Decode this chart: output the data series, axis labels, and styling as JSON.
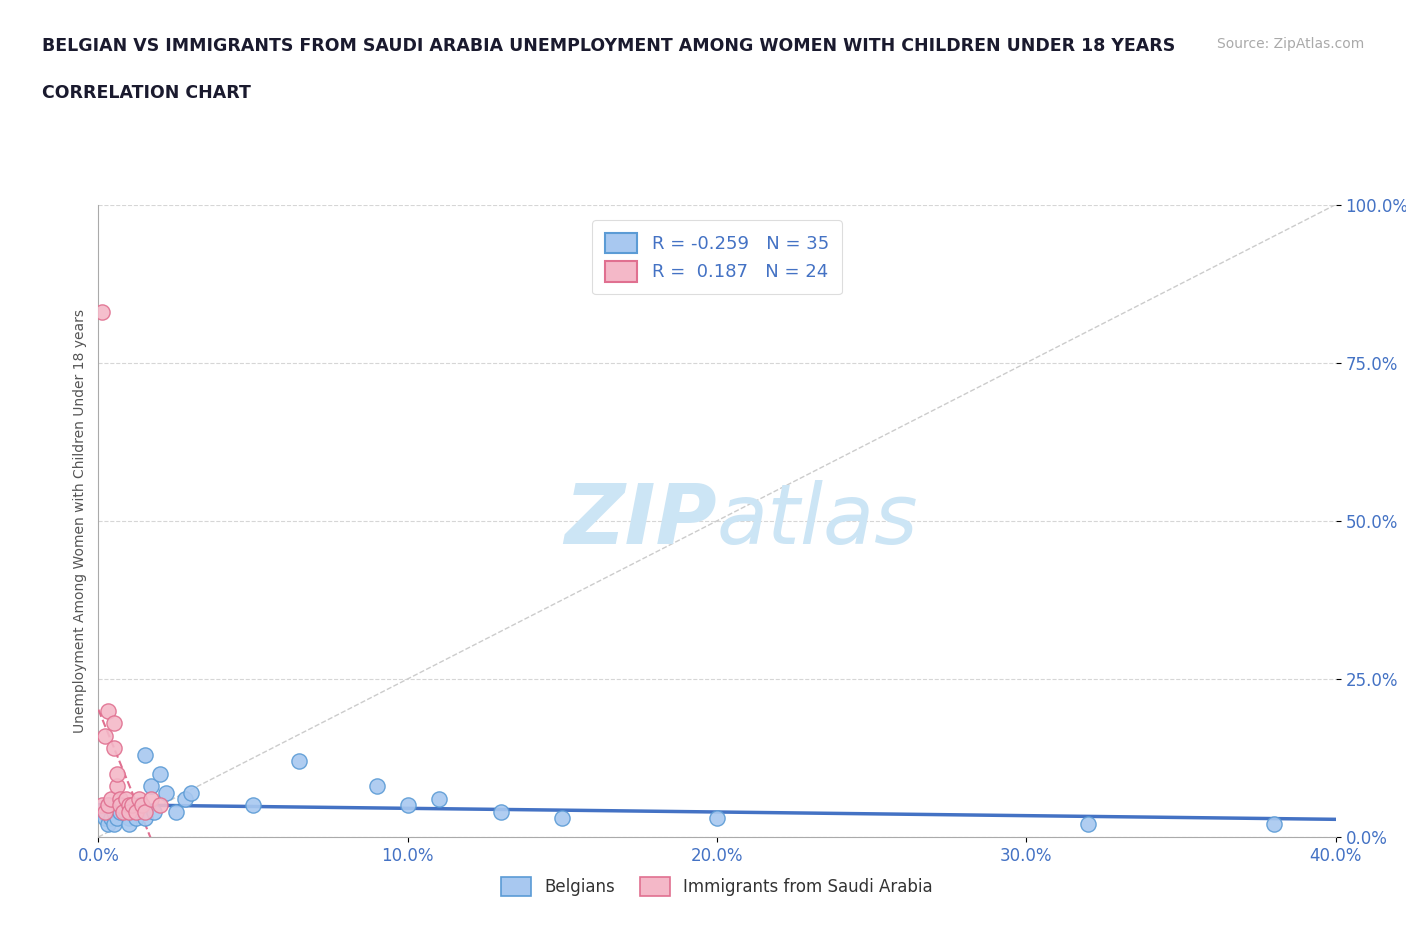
{
  "title_line1": "BELGIAN VS IMMIGRANTS FROM SAUDI ARABIA UNEMPLOYMENT AMONG WOMEN WITH CHILDREN UNDER 18 YEARS",
  "title_line2": "CORRELATION CHART",
  "source": "Source: ZipAtlas.com",
  "ylabel": "Unemployment Among Women with Children Under 18 years",
  "xlim": [
    0.0,
    0.4
  ],
  "ylim": [
    0.0,
    1.0
  ],
  "xticks": [
    0.0,
    0.1,
    0.2,
    0.3,
    0.4
  ],
  "xtick_labels": [
    "0.0%",
    "10.0%",
    "20.0%",
    "30.0%",
    "40.0%"
  ],
  "yticks": [
    0.0,
    0.25,
    0.5,
    0.75,
    1.0
  ],
  "ytick_labels": [
    "0.0%",
    "25.0%",
    "50.0%",
    "75.0%",
    "100.0%"
  ],
  "belgian_color": "#a8c8f0",
  "belgian_edge_color": "#5b9bd5",
  "saudi_color": "#f4b8c8",
  "saudi_edge_color": "#e07090",
  "belgian_line_color": "#4472c4",
  "saudi_line_color": "#e07090",
  "watermark_color": "#cce5f5",
  "R_belgian": -0.259,
  "N_belgian": 35,
  "R_saudi": 0.187,
  "N_saudi": 24,
  "belgian_x": [
    0.001,
    0.002,
    0.003,
    0.003,
    0.004,
    0.005,
    0.005,
    0.006,
    0.007,
    0.008,
    0.009,
    0.01,
    0.01,
    0.011,
    0.012,
    0.013,
    0.015,
    0.015,
    0.017,
    0.018,
    0.02,
    0.022,
    0.025,
    0.028,
    0.03,
    0.05,
    0.065,
    0.09,
    0.1,
    0.11,
    0.13,
    0.15,
    0.2,
    0.32,
    0.38
  ],
  "belgian_y": [
    0.04,
    0.03,
    0.05,
    0.02,
    0.03,
    0.04,
    0.02,
    0.03,
    0.04,
    0.05,
    0.04,
    0.03,
    0.02,
    0.04,
    0.03,
    0.05,
    0.03,
    0.13,
    0.08,
    0.04,
    0.1,
    0.07,
    0.04,
    0.06,
    0.07,
    0.05,
    0.12,
    0.08,
    0.05,
    0.06,
    0.04,
    0.03,
    0.03,
    0.02,
    0.02
  ],
  "saudi_x": [
    0.001,
    0.001,
    0.002,
    0.002,
    0.003,
    0.003,
    0.004,
    0.005,
    0.005,
    0.006,
    0.006,
    0.007,
    0.007,
    0.008,
    0.009,
    0.01,
    0.01,
    0.011,
    0.012,
    0.013,
    0.014,
    0.015,
    0.017,
    0.02
  ],
  "saudi_y": [
    0.05,
    0.83,
    0.04,
    0.16,
    0.05,
    0.2,
    0.06,
    0.14,
    0.18,
    0.08,
    0.1,
    0.06,
    0.05,
    0.04,
    0.06,
    0.05,
    0.04,
    0.05,
    0.04,
    0.06,
    0.05,
    0.04,
    0.06,
    0.05
  ],
  "background_color": "#ffffff",
  "grid_color": "#cccccc",
  "title_color": "#1a1a2e",
  "axis_tick_color": "#4472c4",
  "legend_text_color": "#4472c4"
}
